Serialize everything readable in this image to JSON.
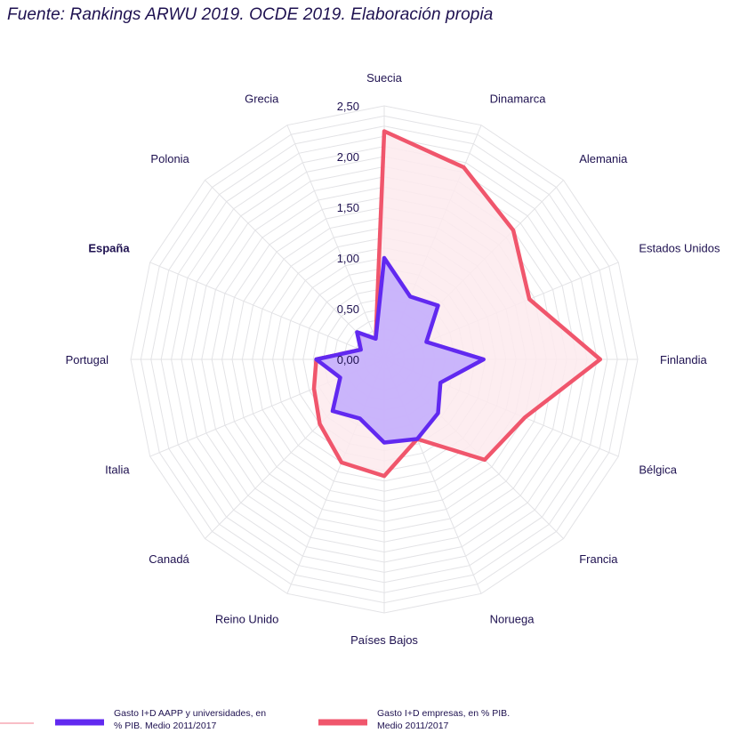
{
  "source_note": "Fuente: Rankings ARWU 2019. OCDE 2019. Elaboración propia",
  "chart_data": {
    "type": "radar",
    "categories": [
      "Suecia",
      "Dinamarca",
      "Alemania",
      "Estados Unidos",
      "Finlandia",
      "Bélgica",
      "Francia",
      "Noruega",
      "Países Bajos",
      "Reino Unido",
      "Canadá",
      "Italia",
      "Portugal",
      "España",
      "Polonia",
      "Grecia"
    ],
    "highlighted_category": "España",
    "r_ticks": [
      "0,00",
      "0,50",
      "1,00",
      "1,50",
      "2,00",
      "2,50"
    ],
    "r_tick_values": [
      0,
      0.5,
      1.0,
      1.5,
      2.0,
      2.5
    ],
    "rlim": [
      0,
      2.5
    ],
    "grid": true,
    "legend_position": "bottom",
    "series": [
      {
        "name": "Gasto I+D empresas, en % PIB. Medio 2011/2017",
        "values": [
          2.25,
          2.05,
          1.8,
          1.55,
          2.13,
          1.5,
          1.4,
          0.85,
          1.15,
          1.1,
          0.9,
          0.75,
          0.67,
          0.25,
          0.35,
          0.22
        ],
        "color": "#f0566c",
        "fill": "#fdeaed"
      },
      {
        "name": "Gasto I+D AAPP y universidades, en % PIB. Medio 2011/2017",
        "values": [
          1.0,
          0.67,
          0.75,
          0.45,
          0.98,
          0.6,
          0.75,
          0.85,
          0.82,
          0.63,
          0.72,
          0.47,
          0.67,
          0.25,
          0.38,
          0.22
        ],
        "color": "#6129f0",
        "fill": "#c4aefc"
      }
    ]
  }
}
